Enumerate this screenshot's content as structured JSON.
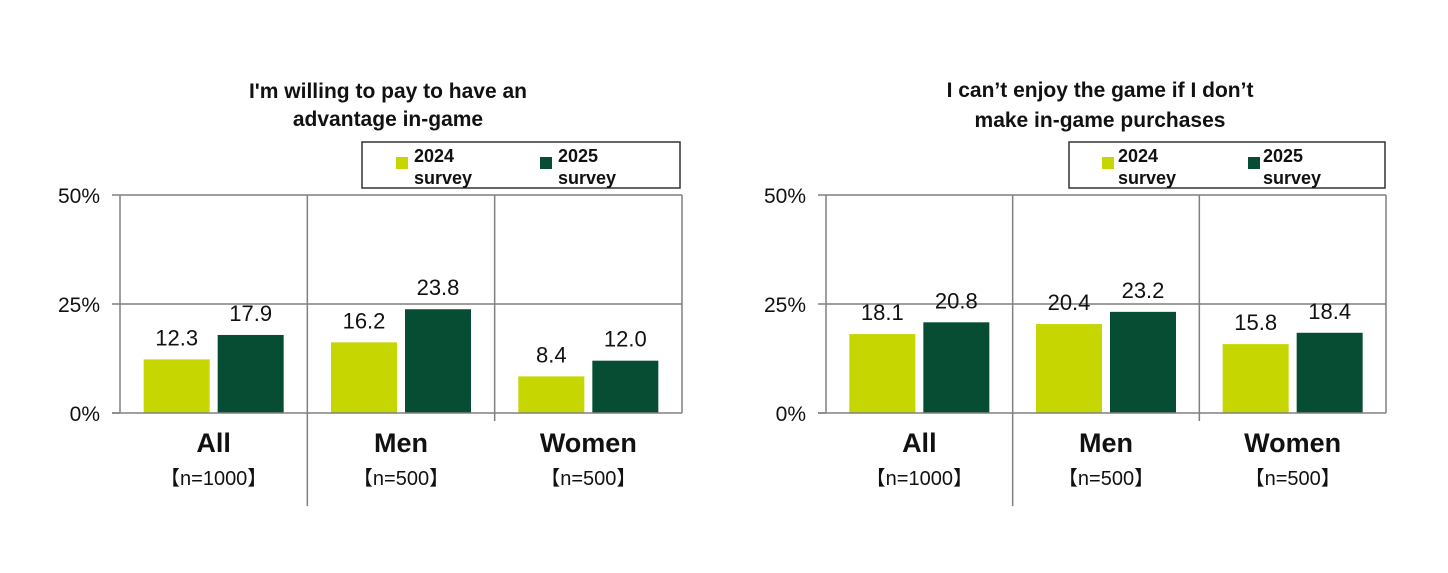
{
  "colors": {
    "series_2024": "#c5d600",
    "series_2025": "#064d33",
    "axis": "#808080",
    "gridline": "#7f7f7f"
  },
  "chart_data": [
    {
      "type": "bar",
      "title_lines": [
        "I'm willing to pay to have an",
        "advantage in-game"
      ],
      "categories": [
        "All",
        "Men",
        "Women"
      ],
      "category_counts": [
        "【n=1000】",
        "【n=500】",
        "【n=500】"
      ],
      "series": [
        {
          "name": "2024 survey",
          "legend_lines": [
            "2024",
            "survey"
          ],
          "values": [
            12.3,
            16.2,
            8.4
          ],
          "labels": [
            "12.3",
            "16.2",
            "8.4"
          ]
        },
        {
          "name": "2025 survey",
          "legend_lines": [
            "2025",
            "survey"
          ],
          "values": [
            17.9,
            23.8,
            12.0
          ],
          "labels": [
            "17.9",
            "23.8",
            "12.0"
          ]
        }
      ],
      "yticks": [
        0,
        25,
        50
      ],
      "ytick_labels": [
        "0%",
        "25%",
        "50%"
      ],
      "ylim": [
        0,
        50
      ],
      "grid": true,
      "legend_position": "top-right"
    },
    {
      "type": "bar",
      "title_lines": [
        "I can’t enjoy the game if I don’t",
        "make in-game purchases"
      ],
      "categories": [
        "All",
        "Men",
        "Women"
      ],
      "category_counts": [
        "【n=1000】",
        "【n=500】",
        "【n=500】"
      ],
      "series": [
        {
          "name": "2024 survey",
          "legend_lines": [
            "2024",
            "survey"
          ],
          "values": [
            18.1,
            20.4,
            15.8
          ],
          "labels": [
            "18.1",
            "20.4",
            "15.8"
          ]
        },
        {
          "name": "2025 survey",
          "legend_lines": [
            "2025",
            "survey"
          ],
          "values": [
            20.8,
            23.2,
            18.4
          ],
          "labels": [
            "20.8",
            "23.2",
            "18.4"
          ]
        }
      ],
      "yticks": [
        0,
        25,
        50
      ],
      "ytick_labels": [
        "0%",
        "25%",
        "50%"
      ],
      "ylim": [
        0,
        50
      ],
      "grid": true,
      "legend_position": "top-right"
    }
  ]
}
